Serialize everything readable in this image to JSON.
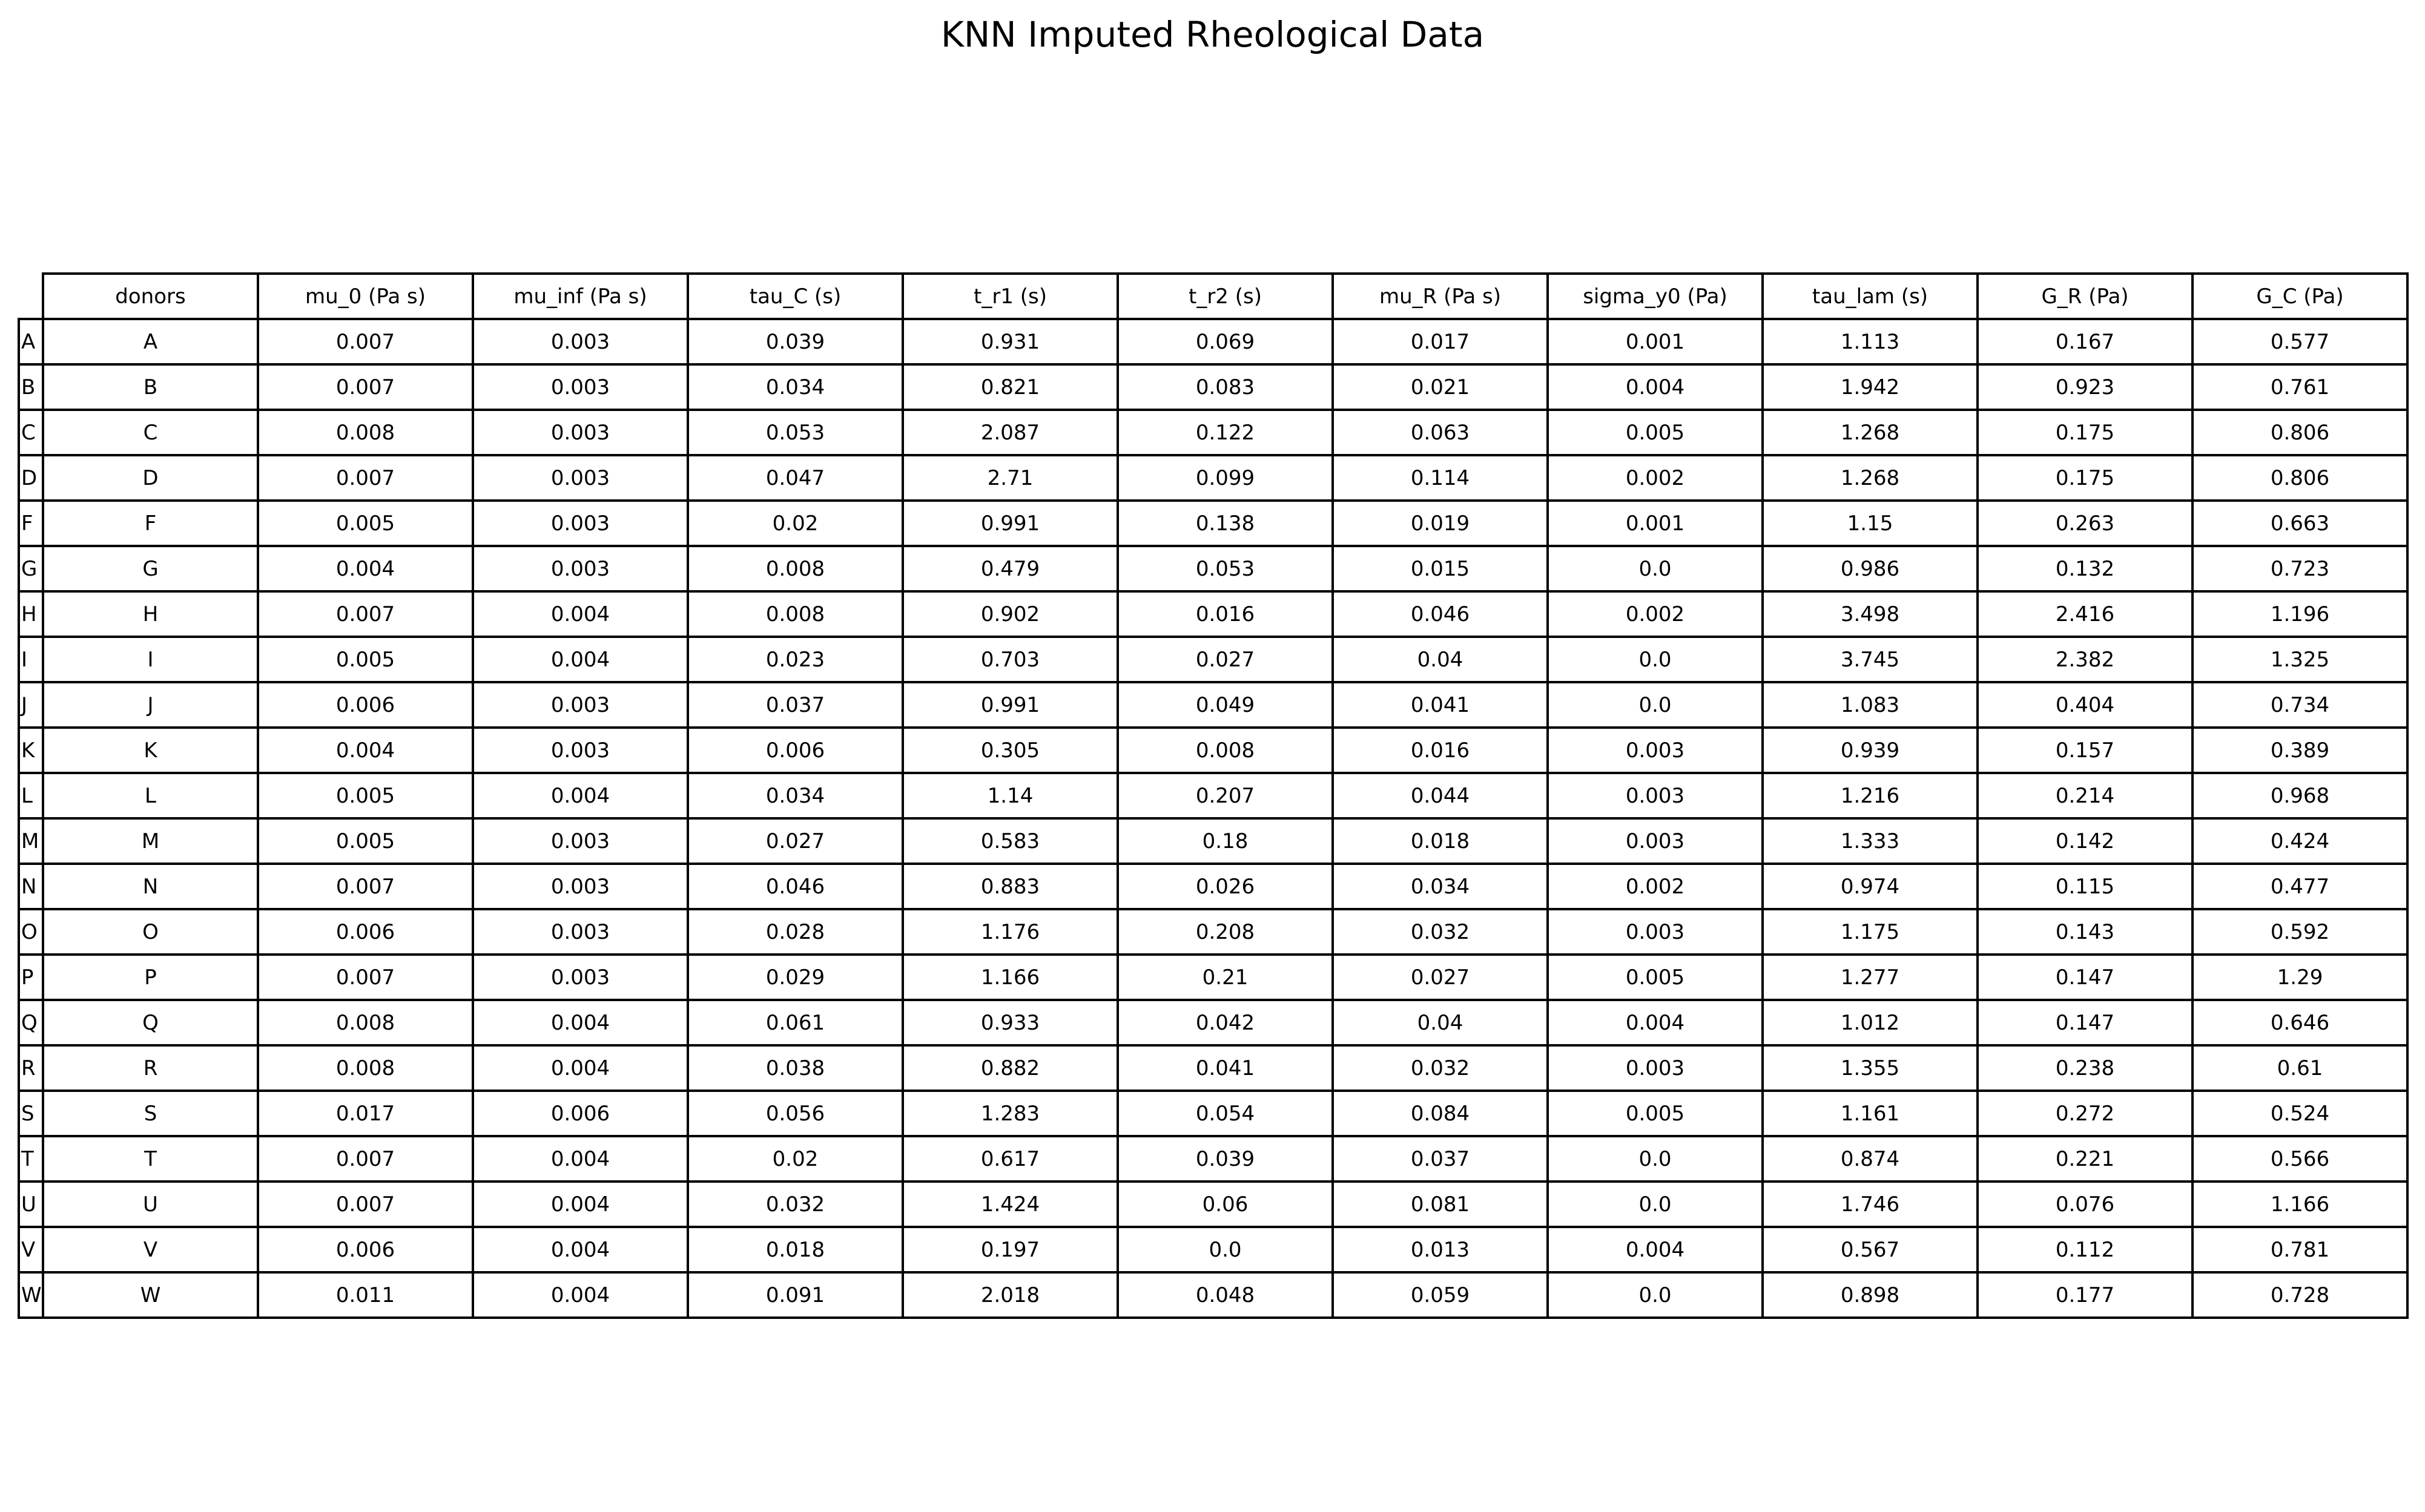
{
  "chart_data": {
    "type": "table",
    "title": "KNN Imputed Rheological Data",
    "columns": [
      "donors",
      "mu_0 (Pa s)",
      "mu_inf (Pa s)",
      "tau_C (s)",
      "t_r1 (s)",
      "t_r2 (s)",
      "mu_R (Pa s)",
      "sigma_y0 (Pa)",
      "tau_lam (s)",
      "G_R (Pa)",
      "G_C (Pa)"
    ],
    "row_labels": [
      "A",
      "B",
      "C",
      "D",
      "F",
      "G",
      "H",
      "I",
      "J",
      "K",
      "L",
      "M",
      "N",
      "O",
      "P",
      "Q",
      "R",
      "S",
      "T",
      "U",
      "V",
      "W"
    ],
    "rows": [
      [
        "A",
        "0.007",
        "0.003",
        "0.039",
        "0.931",
        "0.069",
        "0.017",
        "0.001",
        "1.113",
        "0.167",
        "0.577"
      ],
      [
        "B",
        "0.007",
        "0.003",
        "0.034",
        "0.821",
        "0.083",
        "0.021",
        "0.004",
        "1.942",
        "0.923",
        "0.761"
      ],
      [
        "C",
        "0.008",
        "0.003",
        "0.053",
        "2.087",
        "0.122",
        "0.063",
        "0.005",
        "1.268",
        "0.175",
        "0.806"
      ],
      [
        "D",
        "0.007",
        "0.003",
        "0.047",
        "2.71",
        "0.099",
        "0.114",
        "0.002",
        "1.268",
        "0.175",
        "0.806"
      ],
      [
        "F",
        "0.005",
        "0.003",
        "0.02",
        "0.991",
        "0.138",
        "0.019",
        "0.001",
        "1.15",
        "0.263",
        "0.663"
      ],
      [
        "G",
        "0.004",
        "0.003",
        "0.008",
        "0.479",
        "0.053",
        "0.015",
        "0.0",
        "0.986",
        "0.132",
        "0.723"
      ],
      [
        "H",
        "0.007",
        "0.004",
        "0.008",
        "0.902",
        "0.016",
        "0.046",
        "0.002",
        "3.498",
        "2.416",
        "1.196"
      ],
      [
        "I",
        "0.005",
        "0.004",
        "0.023",
        "0.703",
        "0.027",
        "0.04",
        "0.0",
        "3.745",
        "2.382",
        "1.325"
      ],
      [
        "J",
        "0.006",
        "0.003",
        "0.037",
        "0.991",
        "0.049",
        "0.041",
        "0.0",
        "1.083",
        "0.404",
        "0.734"
      ],
      [
        "K",
        "0.004",
        "0.003",
        "0.006",
        "0.305",
        "0.008",
        "0.016",
        "0.003",
        "0.939",
        "0.157",
        "0.389"
      ],
      [
        "L",
        "0.005",
        "0.004",
        "0.034",
        "1.14",
        "0.207",
        "0.044",
        "0.003",
        "1.216",
        "0.214",
        "0.968"
      ],
      [
        "M",
        "0.005",
        "0.003",
        "0.027",
        "0.583",
        "0.18",
        "0.018",
        "0.003",
        "1.333",
        "0.142",
        "0.424"
      ],
      [
        "N",
        "0.007",
        "0.003",
        "0.046",
        "0.883",
        "0.026",
        "0.034",
        "0.002",
        "0.974",
        "0.115",
        "0.477"
      ],
      [
        "O",
        "0.006",
        "0.003",
        "0.028",
        "1.176",
        "0.208",
        "0.032",
        "0.003",
        "1.175",
        "0.143",
        "0.592"
      ],
      [
        "P",
        "0.007",
        "0.003",
        "0.029",
        "1.166",
        "0.21",
        "0.027",
        "0.005",
        "1.277",
        "0.147",
        "1.29"
      ],
      [
        "Q",
        "0.008",
        "0.004",
        "0.061",
        "0.933",
        "0.042",
        "0.04",
        "0.004",
        "1.012",
        "0.147",
        "0.646"
      ],
      [
        "R",
        "0.008",
        "0.004",
        "0.038",
        "0.882",
        "0.041",
        "0.032",
        "0.003",
        "1.355",
        "0.238",
        "0.61"
      ],
      [
        "S",
        "0.017",
        "0.006",
        "0.056",
        "1.283",
        "0.054",
        "0.084",
        "0.005",
        "1.161",
        "0.272",
        "0.524"
      ],
      [
        "T",
        "0.007",
        "0.004",
        "0.02",
        "0.617",
        "0.039",
        "0.037",
        "0.0",
        "0.874",
        "0.221",
        "0.566"
      ],
      [
        "U",
        "0.007",
        "0.004",
        "0.032",
        "1.424",
        "0.06",
        "0.081",
        "0.0",
        "1.746",
        "0.076",
        "1.166"
      ],
      [
        "V",
        "0.006",
        "0.004",
        "0.018",
        "0.197",
        "0.0",
        "0.013",
        "0.004",
        "0.567",
        "0.112",
        "0.781"
      ],
      [
        "W",
        "0.011",
        "0.004",
        "0.091",
        "2.018",
        "0.048",
        "0.059",
        "0.0",
        "0.898",
        "0.177",
        "0.728"
      ]
    ]
  }
}
